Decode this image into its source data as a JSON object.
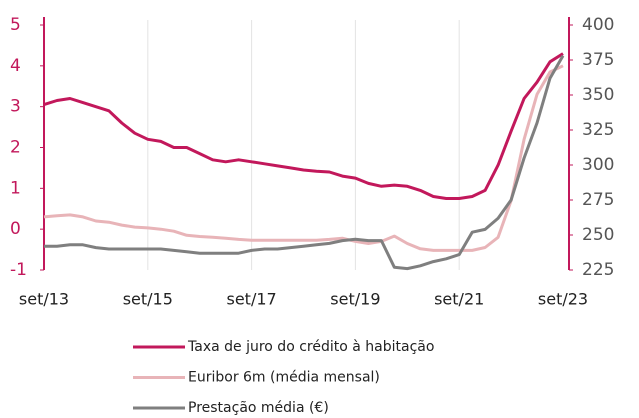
{
  "chart_data": {
    "type": "line",
    "categories": [
      "set/13",
      null,
      null,
      null,
      null,
      null,
      null,
      null,
      "set/15",
      null,
      null,
      null,
      null,
      null,
      null,
      null,
      "set/17",
      null,
      null,
      null,
      null,
      null,
      null,
      null,
      "set/19",
      null,
      null,
      null,
      null,
      null,
      null,
      null,
      "set/21",
      null,
      null,
      null,
      null,
      null,
      null,
      null,
      "set/23"
    ],
    "series": [
      {
        "name": "Taxa de juro do crédito à habitação",
        "color": "#c2185b",
        "axis": "y",
        "values": [
          3.05,
          3.15,
          3.2,
          3.1,
          3.0,
          2.9,
          2.6,
          2.35,
          2.2,
          2.15,
          2.0,
          2.0,
          1.85,
          1.7,
          1.65,
          1.7,
          1.65,
          1.6,
          1.55,
          1.5,
          1.45,
          1.42,
          1.4,
          1.3,
          1.25,
          1.12,
          1.05,
          1.08,
          1.05,
          0.95,
          0.8,
          0.75,
          0.75,
          0.8,
          0.95,
          1.57,
          2.4,
          3.2,
          3.6,
          4.1,
          4.3
        ]
      },
      {
        "name": "Euribor 6m (média mensal)",
        "color": "#e8b4b8",
        "axis": "y",
        "values": [
          0.3,
          0.33,
          0.35,
          0.3,
          0.2,
          0.17,
          0.1,
          0.05,
          0.03,
          0.0,
          -0.05,
          -0.15,
          -0.18,
          -0.2,
          -0.22,
          -0.25,
          -0.27,
          -0.27,
          -0.27,
          -0.27,
          -0.27,
          -0.27,
          -0.25,
          -0.22,
          -0.3,
          -0.35,
          -0.3,
          -0.17,
          -0.35,
          -0.48,
          -0.52,
          -0.52,
          -0.52,
          -0.52,
          -0.45,
          -0.2,
          0.7,
          2.2,
          3.3,
          3.85,
          4.0
        ]
      },
      {
        "name": "Prestação  média (€)",
        "color": "#7f7f7f",
        "axis": "y2",
        "values": [
          242,
          242,
          243,
          243,
          241,
          240,
          240,
          240,
          240,
          240,
          239,
          238,
          237,
          237,
          237,
          237,
          239,
          240,
          240,
          241,
          242,
          243,
          244,
          246,
          247,
          246,
          246,
          227,
          226,
          228,
          231,
          233,
          236,
          252,
          254,
          262,
          275,
          305,
          330,
          362,
          378
        ]
      }
    ],
    "ylim": [
      -1,
      5
    ],
    "yticks": [
      -1,
      0,
      1,
      2,
      3,
      4,
      5
    ],
    "y2lim": [
      225,
      400
    ],
    "y2ticks": [
      225,
      250,
      275,
      300,
      325,
      350,
      375,
      400
    ],
    "grid": true
  }
}
